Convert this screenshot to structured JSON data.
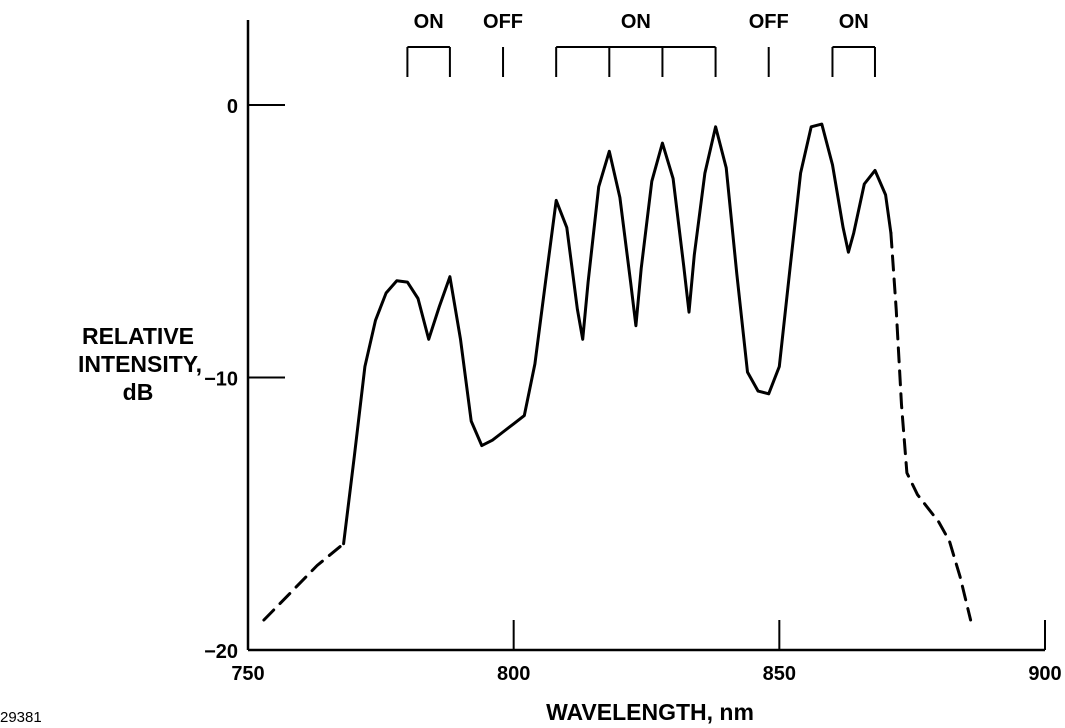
{
  "chart_data": {
    "type": "line",
    "title": "",
    "xlabel": "WAVELENGTH, nm",
    "ylabel_lines": [
      "RELATIVE",
      "INTENSITY,",
      "dB"
    ],
    "xlim": [
      750,
      900
    ],
    "ylim": [
      -20,
      0
    ],
    "xticks": [
      750,
      800,
      850,
      900
    ],
    "xtick_labels": [
      "750",
      "800",
      "850",
      "900"
    ],
    "yticks": [
      -20,
      -10,
      0
    ],
    "ytick_labels": [
      "−20",
      "−10",
      "0"
    ],
    "grid": false,
    "legend": "none",
    "line_color": "#000000",
    "figure_id": "29381",
    "channel_markers": [
      {
        "label": "ON",
        "x": [
          780,
          788
        ]
      },
      {
        "label": "OFF",
        "x": [
          798
        ]
      },
      {
        "label": "ON",
        "x": [
          808,
          818,
          828,
          838
        ]
      },
      {
        "label": "OFF",
        "x": [
          848
        ]
      },
      {
        "label": "ON",
        "x": [
          860,
          868
        ]
      }
    ],
    "series": [
      {
        "style": "dashed",
        "x": [
          753,
          758,
          763,
          768
        ],
        "y": [
          -18.9,
          -17.9,
          -16.9,
          -16.1
        ]
      },
      {
        "style": "solid",
        "x": [
          768,
          770,
          772,
          774,
          776,
          778,
          780,
          782,
          784,
          786,
          788,
          790,
          792,
          794,
          796,
          798,
          800,
          802,
          804,
          806,
          808,
          810,
          812,
          813,
          814,
          816,
          818,
          820,
          822,
          823,
          824,
          826,
          828,
          830,
          832,
          833,
          834,
          836,
          838,
          840,
          842,
          844,
          846,
          848,
          850,
          852,
          854,
          856,
          858,
          860,
          862,
          863,
          864,
          866,
          868,
          870,
          871
        ],
        "y": [
          -16.1,
          -12.9,
          -9.6,
          -7.9,
          -6.9,
          -6.45,
          -6.5,
          -7.1,
          -8.6,
          -7.4,
          -6.3,
          -8.6,
          -11.6,
          -12.5,
          -12.3,
          -12.0,
          -11.7,
          -11.4,
          -9.5,
          -6.5,
          -3.5,
          -4.5,
          -7.5,
          -8.6,
          -6.5,
          -3.0,
          -1.7,
          -3.4,
          -6.5,
          -8.1,
          -6.0,
          -2.8,
          -1.4,
          -2.7,
          -5.9,
          -7.6,
          -5.5,
          -2.5,
          -0.8,
          -2.3,
          -6.2,
          -9.8,
          -10.5,
          -10.6,
          -9.6,
          -6.0,
          -2.5,
          -0.8,
          -0.7,
          -2.2,
          -4.5,
          -5.4,
          -4.7,
          -2.9,
          -2.4,
          -3.3,
          -4.7
        ]
      },
      {
        "style": "dashed",
        "x": [
          871,
          872,
          873,
          874,
          876,
          878,
          880,
          882,
          884,
          886
        ],
        "y": [
          -4.7,
          -7.5,
          -11.0,
          -13.5,
          -14.3,
          -14.8,
          -15.3,
          -16.0,
          -17.3,
          -18.9
        ]
      }
    ]
  }
}
